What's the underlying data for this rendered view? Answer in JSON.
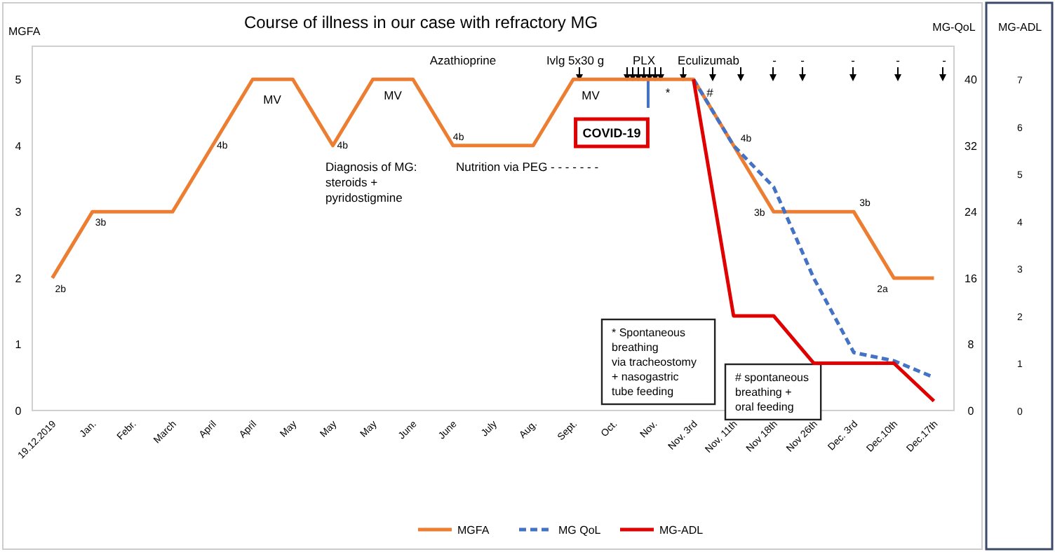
{
  "chart_data": {
    "type": "line",
    "title": "Course of illness in our case with refractory MG",
    "ylabel": "MGFA",
    "y2label": "MG-QoL",
    "y3label": "MG-ADL",
    "categories": [
      "19.12.2019",
      "Jan.",
      "Febr.",
      "March",
      "April",
      "April",
      "May",
      "May",
      "May",
      "June",
      "June",
      "July",
      "Aug.",
      "Sept.",
      "Oct.",
      "Nov.",
      "Nov. 3rd",
      "Nov. 11th",
      "Nov 18th",
      "Nov 26th",
      "Dec. 3rd",
      "Dec.10th",
      "Dec.17th"
    ],
    "series": [
      {
        "name": "MGFA",
        "color": "#ed7d31",
        "values": [
          2,
          3,
          3,
          3,
          4,
          5,
          5,
          4,
          5,
          5,
          4,
          4,
          4,
          5,
          5,
          5,
          5,
          4,
          3,
          3,
          3,
          2,
          2
        ],
        "value_labels": [
          "2b",
          "3b",
          null,
          null,
          "4b",
          null,
          null,
          "4b",
          null,
          null,
          "4b",
          null,
          null,
          null,
          null,
          null,
          null,
          "4b",
          "3b",
          null,
          "3b",
          "2a",
          null
        ]
      },
      {
        "name": "MG QoL",
        "color": "#4472c4",
        "axis": "y2",
        "line_style": "dashed",
        "values": [
          null,
          null,
          null,
          null,
          null,
          null,
          null,
          null,
          null,
          null,
          null,
          null,
          null,
          null,
          null,
          null,
          40,
          32,
          27,
          16,
          7,
          6,
          4
        ]
      },
      {
        "name": "MG-ADL",
        "color": "#e00000",
        "axis": "y3",
        "values": [
          null,
          null,
          null,
          null,
          null,
          null,
          null,
          null,
          null,
          null,
          null,
          null,
          null,
          null,
          null,
          null,
          7,
          2,
          2,
          1,
          1,
          1,
          0.2
        ]
      }
    ],
    "ylim": [
      0,
      5.5
    ],
    "yticks": [
      0,
      1,
      2,
      3,
      4,
      5
    ],
    "y2lim": [
      0,
      44
    ],
    "y2ticks": [
      0,
      8,
      16,
      24,
      32,
      40
    ],
    "y3lim": [
      0,
      7.7
    ],
    "y3ticks": [
      0,
      1,
      2,
      3,
      4,
      5,
      6,
      7
    ],
    "legend": "bottom",
    "grid": false,
    "annotations": [
      "MV",
      "MV",
      "MV",
      "Azathioprine",
      "Ivlg 5x30 g",
      "PLX",
      "Eculizumab",
      "-",
      "-",
      "-",
      "-",
      "-",
      "Diagnosis of MG:\nsteroids +\npyridostigmine",
      "Nutrition via PEG - - - - - - -",
      "COVID-19",
      "*",
      "#",
      "* Spontaneous\nbreathing\nvia tracheostomy\n+ nasogastric\ntube feeding",
      "# spontaneous\nbreathing +\noral feeding"
    ]
  }
}
